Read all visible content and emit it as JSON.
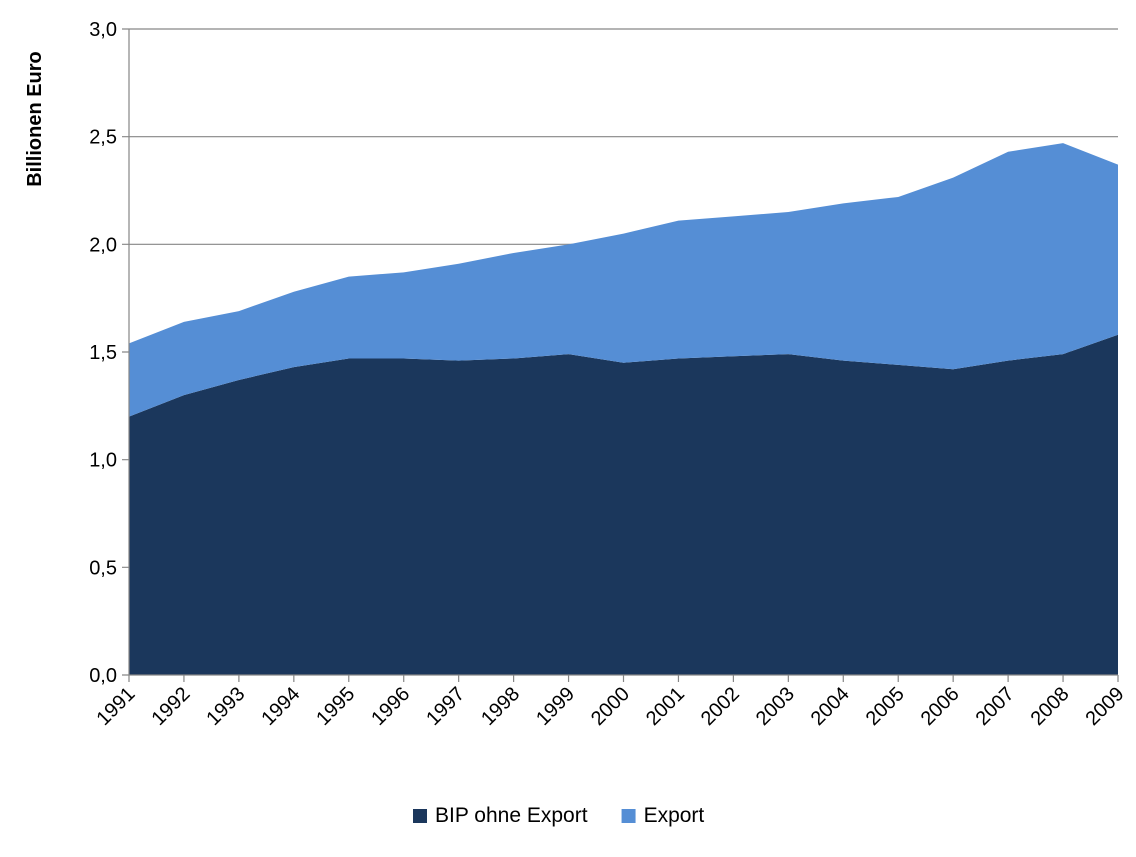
{
  "chart_data": {
    "type": "area",
    "stacked": true,
    "title": "",
    "xlabel": "",
    "ylabel": "Billionen Euro",
    "ylim": [
      0,
      3
    ],
    "y_ticks": [
      "0,0",
      "0,5",
      "1,0",
      "1,5",
      "2,0",
      "2,5",
      "3,0"
    ],
    "y_tick_values": [
      0,
      0.5,
      1.0,
      1.5,
      2.0,
      2.5,
      3.0
    ],
    "grid": true,
    "legend_position": "bottom",
    "categories": [
      "1991",
      "1992",
      "1993",
      "1994",
      "1995",
      "1996",
      "1997",
      "1998",
      "1999",
      "2000",
      "2001",
      "2002",
      "2003",
      "2004",
      "2005",
      "2006",
      "2007",
      "2008",
      "2009"
    ],
    "series": [
      {
        "name": "BIP ohne Export",
        "color": "#1b375c",
        "values": [
          1.2,
          1.3,
          1.37,
          1.43,
          1.47,
          1.47,
          1.46,
          1.47,
          1.49,
          1.45,
          1.47,
          1.48,
          1.49,
          1.46,
          1.44,
          1.42,
          1.46,
          1.49,
          1.58
        ]
      },
      {
        "name": "Export",
        "color": "#558ed5",
        "values": [
          0.34,
          0.34,
          0.32,
          0.35,
          0.38,
          0.4,
          0.45,
          0.49,
          0.51,
          0.6,
          0.64,
          0.65,
          0.66,
          0.73,
          0.78,
          0.89,
          0.97,
          0.98,
          0.79
        ]
      }
    ]
  }
}
